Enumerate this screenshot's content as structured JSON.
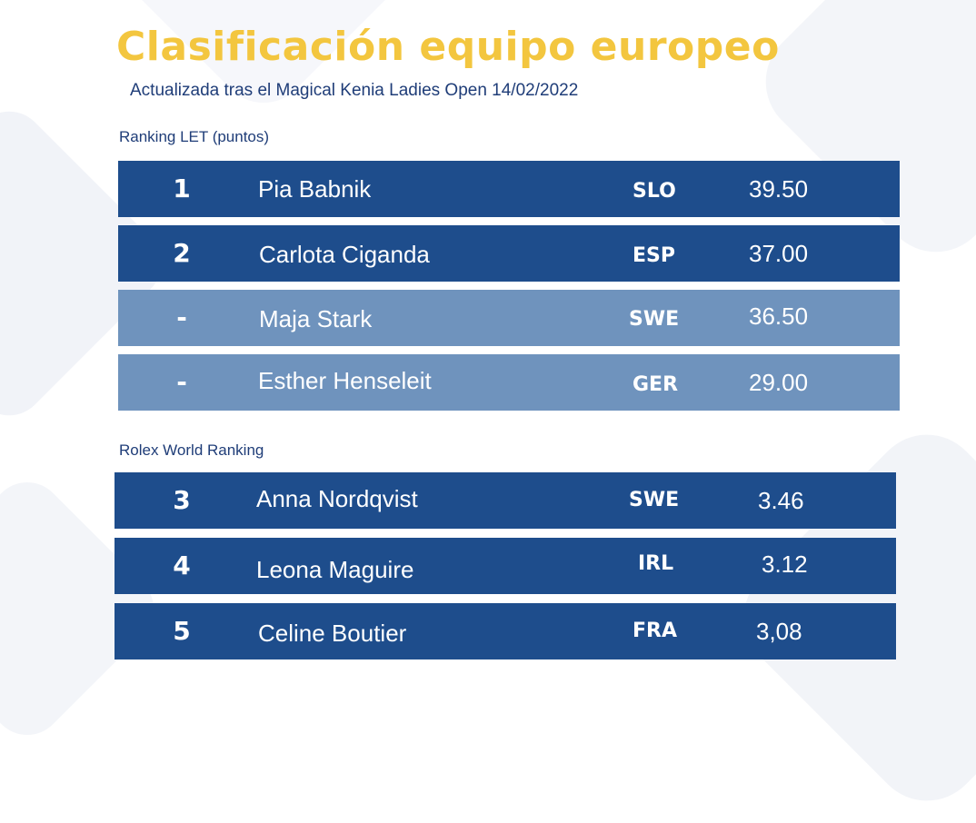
{
  "header": {
    "title": "Clasificación equipo europeo",
    "subtitle": "Actualizada tras el Magical Kenia Ladies Open 14/02/2022"
  },
  "sections": [
    {
      "label": "Ranking LET (puntos)",
      "rows": [
        {
          "pos": "1",
          "name": "Pia Babnik",
          "country": "SLO",
          "value": "39.50",
          "style": "dark"
        },
        {
          "pos": "2",
          "name": "Carlota Ciganda",
          "country": "ESP",
          "value": "37.00",
          "style": "dark"
        },
        {
          "pos": "-",
          "name": "Maja Stark",
          "country": "SWE",
          "value": "36.50",
          "style": "light"
        },
        {
          "pos": "-",
          "name": "Esther Henseleit",
          "country": "GER",
          "value": "29.00",
          "style": "light"
        }
      ]
    },
    {
      "label": "Rolex World Ranking",
      "rows": [
        {
          "pos": "3",
          "name": "Anna Nordqvist",
          "country": "SWE",
          "value": "3.46",
          "style": "dark"
        },
        {
          "pos": "4",
          "name": "Leona Maguire",
          "country": "IRL",
          "value": "3.12",
          "style": "dark"
        },
        {
          "pos": "5",
          "name": "Celine Boutier",
          "country": "FRA",
          "value": "3,08",
          "style": "dark"
        }
      ]
    }
  ],
  "colors": {
    "title": "#f3c63f",
    "text_blue": "#1f3d78",
    "row_dark": "#1e4d8c",
    "row_light": "#6f93bd"
  }
}
